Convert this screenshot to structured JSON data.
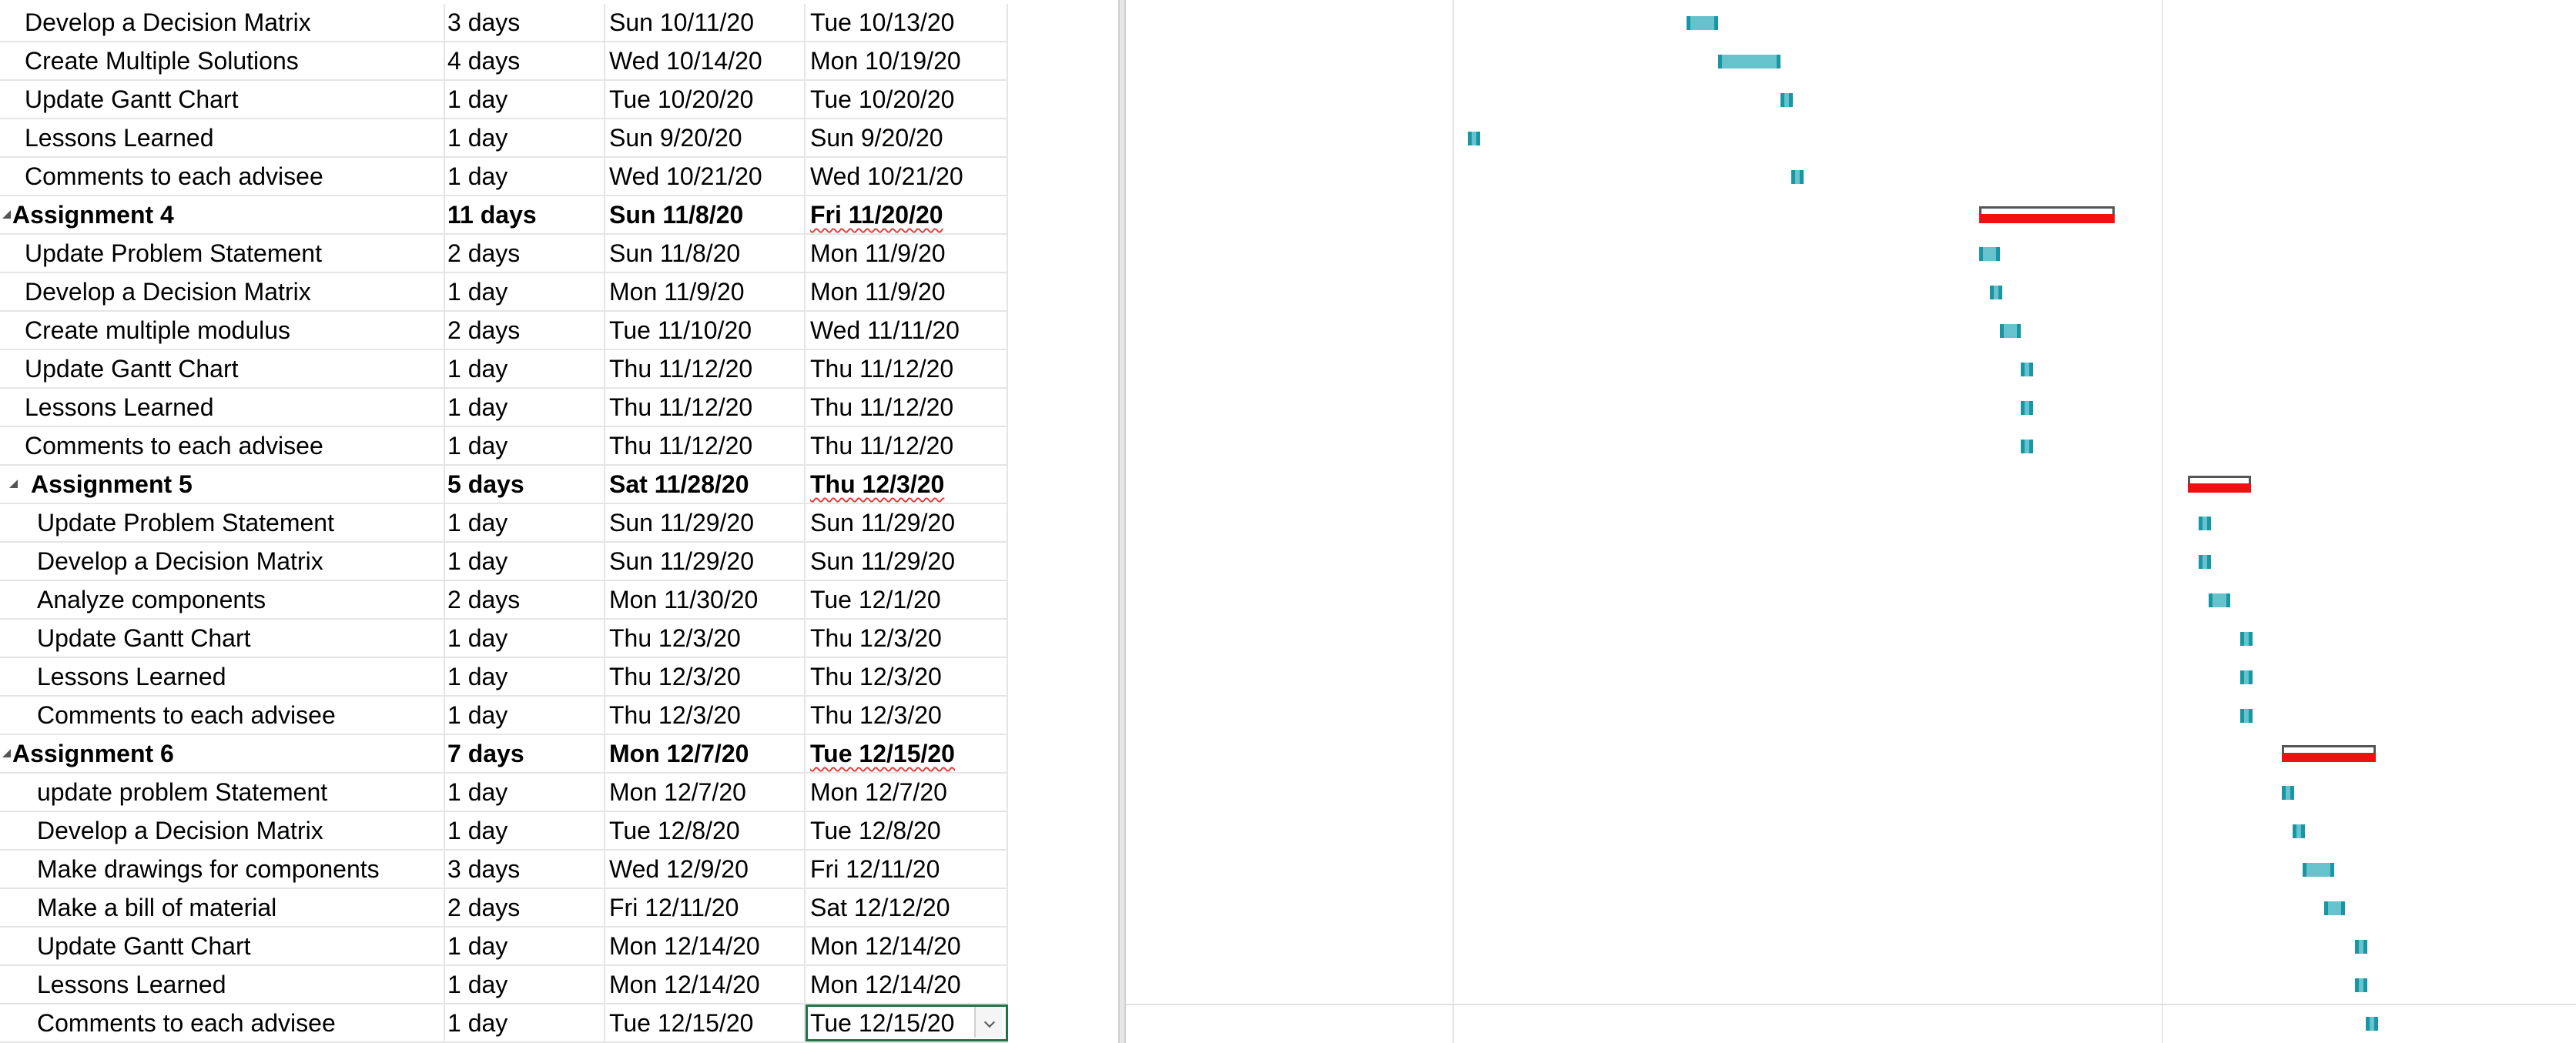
{
  "colors": {
    "task_bar": "#66c2cc",
    "task_bar_edge": "#1996a3",
    "summary_bar": "#ee1111",
    "summary_outline": "#555555",
    "grid": "#e5e5e5"
  },
  "icons": {
    "collapse": "collapse-triangle-icon",
    "dropdown": "chevron-down-icon"
  },
  "rows": [
    {
      "name": "Develop a Decision Matrix",
      "duration": "3 days",
      "start": "Sun 10/11/20",
      "finish": "Tue 10/13/20",
      "level": 1,
      "summary": false
    },
    {
      "name": "Create Multiple Solutions",
      "duration": "4 days",
      "start": "Wed 10/14/20",
      "finish": "Mon 10/19/20",
      "level": 1,
      "summary": false
    },
    {
      "name": "Update Gantt Chart",
      "duration": "1 day",
      "start": "Tue 10/20/20",
      "finish": "Tue 10/20/20",
      "level": 1,
      "summary": false
    },
    {
      "name": "Lessons Learned",
      "duration": "1 day",
      "start": "Sun 9/20/20",
      "finish": "Sun 9/20/20",
      "level": 1,
      "summary": false
    },
    {
      "name": "Comments to each advisee",
      "duration": "1 day",
      "start": "Wed 10/21/20",
      "finish": "Wed 10/21/20",
      "level": 1,
      "summary": false
    },
    {
      "name": "Assignment 4",
      "duration": "11 days",
      "start": "Sun 11/8/20",
      "finish": "Fri 11/20/20",
      "level": 0,
      "summary": true
    },
    {
      "name": "Update Problem Statement",
      "duration": "2 days",
      "start": "Sun 11/8/20",
      "finish": "Mon 11/9/20",
      "level": 1,
      "summary": false
    },
    {
      "name": "Develop a Decision Matrix",
      "duration": "1 day",
      "start": "Mon 11/9/20",
      "finish": "Mon 11/9/20",
      "level": 1,
      "summary": false
    },
    {
      "name": "Create multiple modulus",
      "duration": "2 days",
      "start": "Tue 11/10/20",
      "finish": "Wed 11/11/20",
      "level": 1,
      "summary": false
    },
    {
      "name": "Update Gantt Chart",
      "duration": "1 day",
      "start": "Thu 11/12/20",
      "finish": "Thu 11/12/20",
      "level": 1,
      "summary": false
    },
    {
      "name": "Lessons Learned",
      "duration": "1 day",
      "start": "Thu 11/12/20",
      "finish": "Thu 11/12/20",
      "level": 1,
      "summary": false
    },
    {
      "name": "Comments to each advisee",
      "duration": "1 day",
      "start": "Thu 11/12/20",
      "finish": "Thu 11/12/20",
      "level": 1,
      "summary": false
    },
    {
      "name": "Assignment 5",
      "duration": "5 days",
      "start": "Sat 11/28/20",
      "finish": "Thu 12/3/20",
      "level": 0,
      "summary": true
    },
    {
      "name": "Update Problem Statement",
      "duration": "1 day",
      "start": "Sun 11/29/20",
      "finish": "Sun 11/29/20",
      "level": 2,
      "summary": false
    },
    {
      "name": "Develop a Decision Matrix",
      "duration": "1 day",
      "start": "Sun 11/29/20",
      "finish": "Sun 11/29/20",
      "level": 2,
      "summary": false
    },
    {
      "name": "Analyze components",
      "duration": "2 days",
      "start": "Mon 11/30/20",
      "finish": "Tue 12/1/20",
      "level": 2,
      "summary": false
    },
    {
      "name": "Update Gantt Chart",
      "duration": "1 day",
      "start": "Thu 12/3/20",
      "finish": "Thu 12/3/20",
      "level": 2,
      "summary": false
    },
    {
      "name": "Lessons Learned",
      "duration": "1 day",
      "start": "Thu 12/3/20",
      "finish": "Thu 12/3/20",
      "level": 2,
      "summary": false
    },
    {
      "name": "Comments to each advisee",
      "duration": "1 day",
      "start": "Thu 12/3/20",
      "finish": "Thu 12/3/20",
      "level": 2,
      "summary": false
    },
    {
      "name": "Assignment 6",
      "duration": "7 days",
      "start": "Mon 12/7/20",
      "finish": "Tue 12/15/20",
      "level": 0,
      "summary": true
    },
    {
      "name": "update problem Statement",
      "duration": "1 day",
      "start": "Mon 12/7/20",
      "finish": "Mon 12/7/20",
      "level": 2,
      "summary": false
    },
    {
      "name": "Develop a Decision Matrix",
      "duration": "1 day",
      "start": "Tue 12/8/20",
      "finish": "Tue 12/8/20",
      "level": 2,
      "summary": false
    },
    {
      "name": "Make drawings for components",
      "duration": "3 days",
      "start": "Wed 12/9/20",
      "finish": "Fri 12/11/20",
      "level": 2,
      "summary": false
    },
    {
      "name": "Make a bill of material",
      "duration": "2 days",
      "start": "Fri 12/11/20",
      "finish": "Sat 12/12/20",
      "level": 2,
      "summary": false
    },
    {
      "name": "Update Gantt Chart",
      "duration": "1 day",
      "start": "Mon 12/14/20",
      "finish": "Mon 12/14/20",
      "level": 2,
      "summary": false
    },
    {
      "name": "Lessons Learned",
      "duration": "1 day",
      "start": "Mon 12/14/20",
      "finish": "Mon 12/14/20",
      "level": 2,
      "summary": false
    },
    {
      "name": "Comments to each advisee",
      "duration": "1 day",
      "start": "Tue 12/15/20",
      "finish": "Tue 12/15/20",
      "level": 2,
      "summary": false,
      "selected_finish": true
    }
  ]
}
